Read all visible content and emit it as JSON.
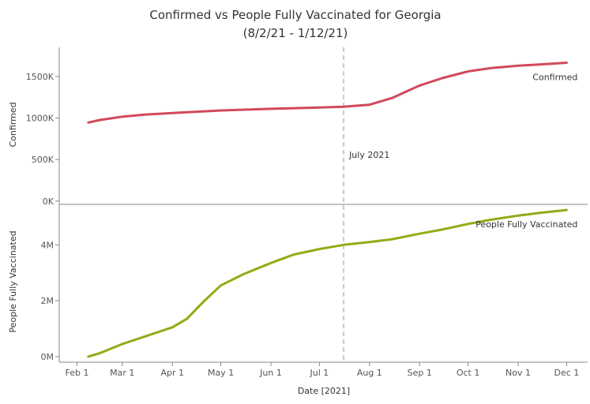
{
  "chart_data": {
    "type": "line",
    "title": "Confirmed vs People Fully Vaccinated for Georgia",
    "subtitle": "(8/2/21 - 1/12/21)",
    "xlabel": "Date [2021]",
    "x_ticks": [
      "Feb 1",
      "Mar 1",
      "Apr 1",
      "May 1",
      "Jun 1",
      "Jul 1",
      "Aug 1",
      "Sep 1",
      "Oct 1",
      "Nov 1",
      "Dec 1"
    ],
    "x_range": [
      "2021-01-21",
      "2021-12-14"
    ],
    "reference_line": {
      "date": "2021-07-16",
      "label": "July 2021"
    },
    "grid": false,
    "legend": "inline labels at series ends",
    "panels": [
      {
        "ylabel": "Confirmed",
        "ylim_k": [
          -40,
          1850
        ],
        "y_ticks": [
          {
            "value": 0,
            "label": "0K"
          },
          {
            "value": 500,
            "label": "500K"
          },
          {
            "value": 1000,
            "label": "1000K"
          },
          {
            "value": 1500,
            "label": "1500K"
          }
        ],
        "series": [
          {
            "name": "Confirmed",
            "color": "#d1495b",
            "unit": "thousands",
            "points": [
              [
                "2021-02-08",
                945
              ],
              [
                "2021-02-15",
                975
              ],
              [
                "2021-03-01",
                1015
              ],
              [
                "2021-03-15",
                1040
              ],
              [
                "2021-04-01",
                1060
              ],
              [
                "2021-05-01",
                1090
              ],
              [
                "2021-06-01",
                1110
              ],
              [
                "2021-07-01",
                1125
              ],
              [
                "2021-07-16",
                1135
              ],
              [
                "2021-08-01",
                1160
              ],
              [
                "2021-08-15",
                1240
              ],
              [
                "2021-09-01",
                1390
              ],
              [
                "2021-09-15",
                1480
              ],
              [
                "2021-10-01",
                1560
              ],
              [
                "2021-10-15",
                1600
              ],
              [
                "2021-11-01",
                1630
              ],
              [
                "2021-11-15",
                1645
              ],
              [
                "2021-12-01",
                1665
              ]
            ]
          }
        ]
      },
      {
        "ylabel": "People Fully Vaccinated",
        "ylim_m": [
          -0.2,
          5.45
        ],
        "y_ticks": [
          {
            "value": 0,
            "label": "0M"
          },
          {
            "value": 2,
            "label": "2M"
          },
          {
            "value": 4,
            "label": "4M"
          }
        ],
        "series": [
          {
            "name": "People Fully Vaccinated",
            "color": "#8fad15",
            "unit": "millions",
            "points": [
              [
                "2021-02-08",
                0.0
              ],
              [
                "2021-02-15",
                0.12
              ],
              [
                "2021-03-01",
                0.45
              ],
              [
                "2021-03-15",
                0.72
              ],
              [
                "2021-04-01",
                1.05
              ],
              [
                "2021-04-10",
                1.35
              ],
              [
                "2021-04-20",
                1.95
              ],
              [
                "2021-05-01",
                2.55
              ],
              [
                "2021-05-15",
                2.95
              ],
              [
                "2021-06-01",
                3.35
              ],
              [
                "2021-06-15",
                3.65
              ],
              [
                "2021-07-01",
                3.85
              ],
              [
                "2021-07-16",
                4.0
              ],
              [
                "2021-08-01",
                4.1
              ],
              [
                "2021-08-15",
                4.2
              ],
              [
                "2021-09-01",
                4.4
              ],
              [
                "2021-09-15",
                4.55
              ],
              [
                "2021-10-01",
                4.75
              ],
              [
                "2021-10-15",
                4.9
              ],
              [
                "2021-11-01",
                5.05
              ],
              [
                "2021-11-15",
                5.15
              ],
              [
                "2021-12-01",
                5.25
              ]
            ]
          }
        ]
      }
    ]
  }
}
